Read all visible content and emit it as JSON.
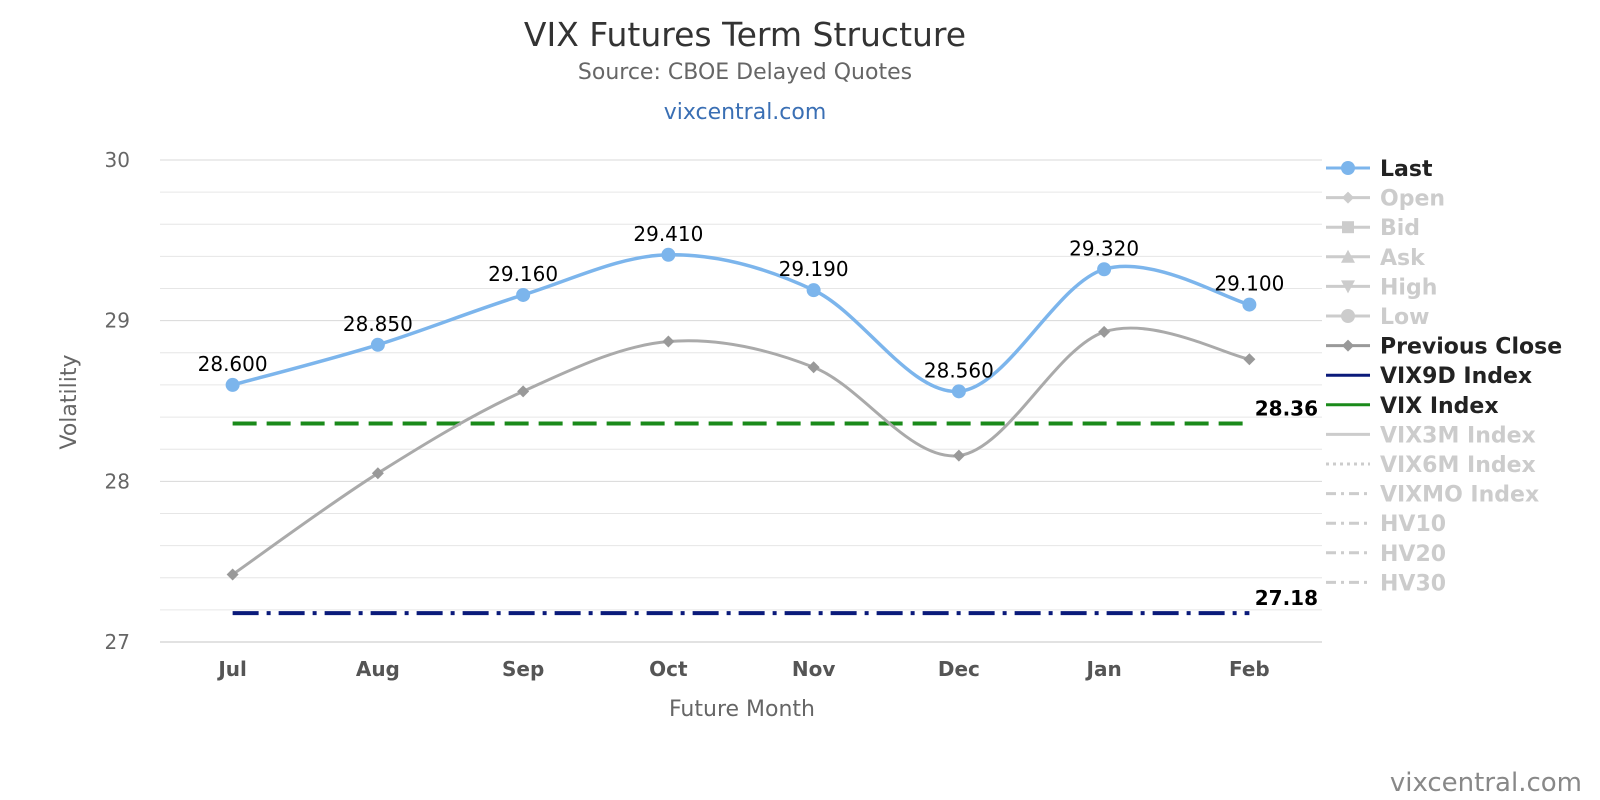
{
  "chart_data": {
    "type": "line",
    "title": "VIX Futures Term Structure",
    "subtitle": "Source: CBOE Delayed Quotes",
    "link_text": "vixcentral.com",
    "credit": "vixcentral.com",
    "xlabel": "Future Month",
    "ylabel": "Volatility",
    "ylim": [
      27,
      30
    ],
    "yticks": [
      27,
      28,
      29,
      30
    ],
    "categories": [
      "Jul",
      "Aug",
      "Sep",
      "Oct",
      "Nov",
      "Dec",
      "Jan",
      "Feb"
    ],
    "grid": true,
    "legend_position": "right",
    "series": [
      {
        "name": "Last",
        "values": [
          28.6,
          28.85,
          29.16,
          29.41,
          29.19,
          28.56,
          29.32,
          29.1
        ],
        "labels": [
          "28.600",
          "28.850",
          "29.160",
          "29.410",
          "29.190",
          "28.560",
          "29.320",
          "29.100"
        ],
        "color": "#7cb5ec",
        "marker": "circle"
      },
      {
        "name": "Previous Close",
        "values": [
          27.42,
          28.05,
          28.56,
          28.87,
          28.71,
          28.16,
          28.93,
          28.76
        ],
        "color": "#aaaaaa",
        "marker": "diamond"
      }
    ],
    "reference_lines": [
      {
        "name": "VIX Index",
        "value": 28.36,
        "label": "28.36",
        "color": "#1a8a1a",
        "style": "dash"
      },
      {
        "name": "VIX9D Index",
        "value": 27.18,
        "label": "27.18",
        "color": "#0a1a7a",
        "style": "dashdot"
      }
    ],
    "legend": [
      {
        "name": "Last",
        "symbol": "circle",
        "color": "#7cb5ec",
        "active": true
      },
      {
        "name": "Open",
        "symbol": "diamond",
        "color": "#cccccc",
        "active": false
      },
      {
        "name": "Bid",
        "symbol": "square",
        "color": "#cccccc",
        "active": false
      },
      {
        "name": "Ask",
        "symbol": "triangle",
        "color": "#cccccc",
        "active": false
      },
      {
        "name": "High",
        "symbol": "triangle-down",
        "color": "#cccccc",
        "active": false
      },
      {
        "name": "Low",
        "symbol": "circle",
        "color": "#cccccc",
        "active": false
      },
      {
        "name": "Previous Close",
        "symbol": "diamond",
        "color": "#999999",
        "active": true
      },
      {
        "name": "VIX9D Index",
        "symbol": "solid",
        "color": "#0a1a7a",
        "active": true
      },
      {
        "name": "VIX Index",
        "symbol": "solid",
        "color": "#1a8a1a",
        "active": true
      },
      {
        "name": "VIX3M Index",
        "symbol": "solid",
        "color": "#cccccc",
        "active": false
      },
      {
        "name": "VIX6M Index",
        "symbol": "dot",
        "color": "#cccccc",
        "active": false
      },
      {
        "name": "VIXMO Index",
        "symbol": "dashdot",
        "color": "#cccccc",
        "active": false
      },
      {
        "name": "HV10",
        "symbol": "dashdot",
        "color": "#cccccc",
        "active": false
      },
      {
        "name": "HV20",
        "symbol": "dashdot",
        "color": "#cccccc",
        "active": false
      },
      {
        "name": "HV30",
        "symbol": "dashdot",
        "color": "#cccccc",
        "active": false
      }
    ]
  }
}
